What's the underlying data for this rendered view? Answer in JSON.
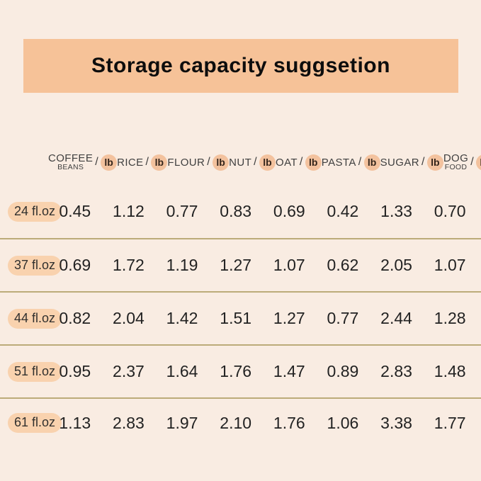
{
  "banner": {
    "title": "Storage capacity suggsetion"
  },
  "table": {
    "unit": "lb",
    "separator": "/",
    "columns": [
      {
        "name": "COFFEE",
        "sub": "BEANS"
      },
      {
        "name": "RICE",
        "sub": ""
      },
      {
        "name": "FLOUR",
        "sub": ""
      },
      {
        "name": "NUT",
        "sub": ""
      },
      {
        "name": "OAT",
        "sub": ""
      },
      {
        "name": "PASTA",
        "sub": ""
      },
      {
        "name": "SUGAR",
        "sub": ""
      },
      {
        "name": "DOG",
        "sub": "FOOD"
      }
    ],
    "rows": [
      {
        "size": "24 fl.oz",
        "values": [
          "0.45",
          "1.12",
          "0.77",
          "0.83",
          "0.69",
          "0.42",
          "1.33",
          "0.70"
        ]
      },
      {
        "size": "37 fl.oz",
        "values": [
          "0.69",
          "1.72",
          "1.19",
          "1.27",
          "1.07",
          "0.62",
          "2.05",
          "1.07"
        ]
      },
      {
        "size": "44 fl.oz",
        "values": [
          "0.82",
          "2.04",
          "1.42",
          "1.51",
          "1.27",
          "0.77",
          "2.44",
          "1.28"
        ]
      },
      {
        "size": "51 fl.oz",
        "values": [
          "0.95",
          "2.37",
          "1.64",
          "1.76",
          "1.47",
          "0.89",
          "2.83",
          "1.48"
        ]
      },
      {
        "size": "61 fl.oz",
        "values": [
          "1.13",
          "2.83",
          "1.97",
          "2.10",
          "1.76",
          "1.06",
          "3.38",
          "1.77"
        ]
      }
    ]
  },
  "colors": {
    "background": "#f9ece2",
    "banner": "#f6c298",
    "badge": "#f3c29e",
    "row_pill": "#f9d2ae",
    "divider": "#bcab79"
  },
  "chart_data": {
    "type": "table",
    "title": "Storage capacity suggsetion",
    "unit": "lb",
    "columns": [
      "COFFEE BEANS",
      "RICE",
      "FLOUR",
      "NUT",
      "OAT",
      "PASTA",
      "SUGAR",
      "DOG FOOD"
    ],
    "row_labels": [
      "24 fl.oz",
      "37 fl.oz",
      "44 fl.oz",
      "51 fl.oz",
      "61 fl.oz"
    ],
    "values": [
      [
        0.45,
        1.12,
        0.77,
        0.83,
        0.69,
        0.42,
        1.33,
        0.7
      ],
      [
        0.69,
        1.72,
        1.19,
        1.27,
        1.07,
        0.62,
        2.05,
        1.07
      ],
      [
        0.82,
        2.04,
        1.42,
        1.51,
        1.27,
        0.77,
        2.44,
        1.28
      ],
      [
        0.95,
        2.37,
        1.64,
        1.76,
        1.47,
        0.89,
        2.83,
        1.48
      ],
      [
        1.13,
        2.83,
        1.97,
        2.1,
        1.76,
        1.06,
        3.38,
        1.77
      ]
    ]
  }
}
